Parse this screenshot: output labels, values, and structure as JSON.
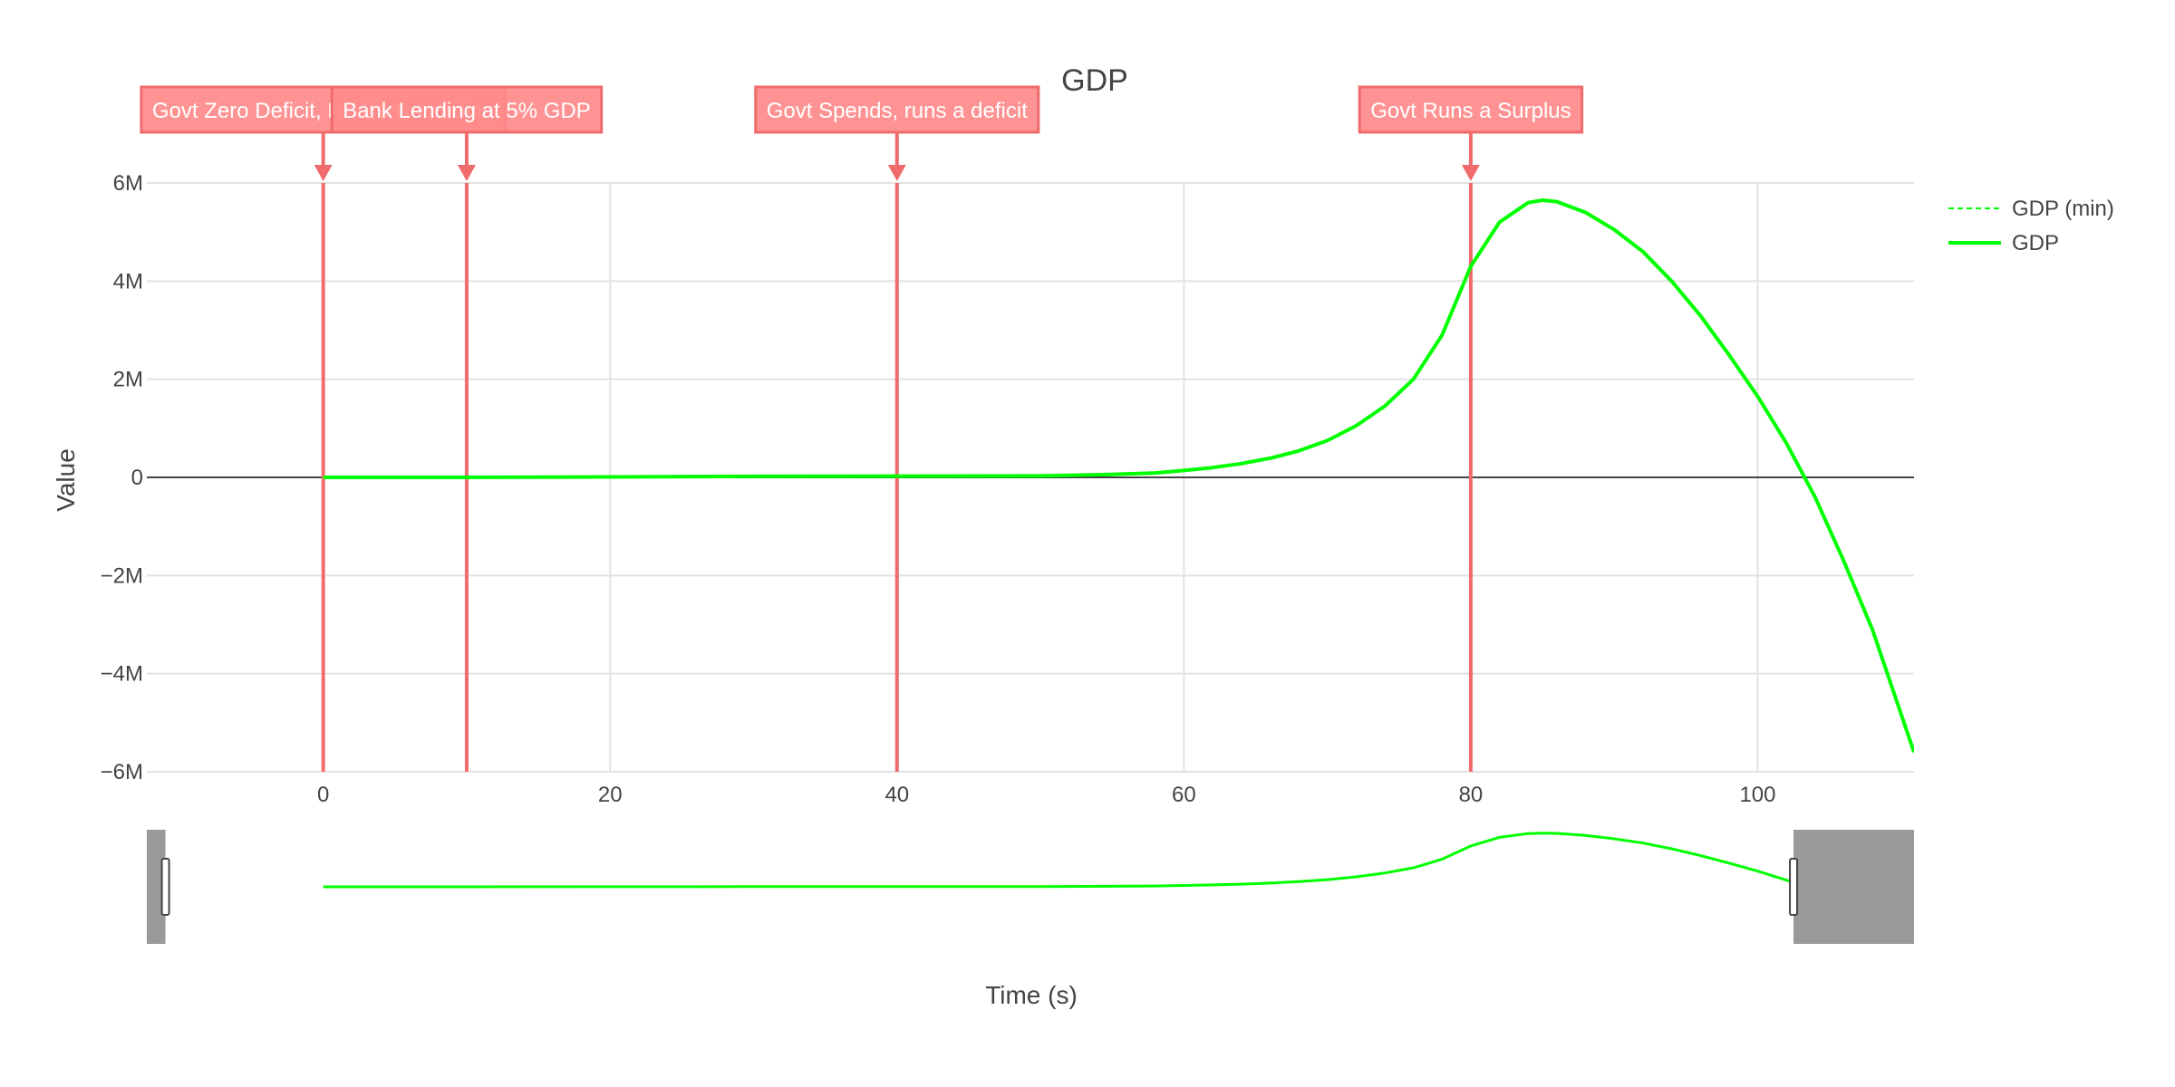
{
  "chart_data": {
    "type": "line",
    "title": "GDP",
    "xlabel": "Time (s)",
    "ylabel": "Value",
    "xlim": [
      -12.3,
      110.9
    ],
    "ylim": [
      -6000000,
      6000000
    ],
    "x_ticks": [
      0,
      20,
      40,
      60,
      80,
      100
    ],
    "x_tick_labels": [
      "0",
      "20",
      "40",
      "60",
      "80",
      "100"
    ],
    "y_ticks": [
      6000000,
      4000000,
      2000000,
      0,
      -2000000,
      -4000000,
      -6000000
    ],
    "y_tick_labels": [
      "6M",
      "4M",
      "2M",
      "0",
      "−2M",
      "−4M",
      "−6M"
    ],
    "grid": true,
    "legend_position": "right",
    "series": [
      {
        "name": "GDP (min)",
        "dash": "dash",
        "color": "#00ff00",
        "x": [],
        "y": []
      },
      {
        "name": "GDP",
        "dash": "solid",
        "color": "#00ff00",
        "x": [
          0,
          5,
          10,
          20,
          30,
          40,
          50,
          55,
          58,
          60,
          62,
          64,
          66,
          68,
          70,
          72,
          74,
          76,
          78,
          80,
          82,
          84,
          85,
          86,
          88,
          90,
          92,
          94,
          96,
          98,
          100,
          102,
          104,
          106,
          108,
          110.9
        ],
        "y": [
          0,
          0,
          0,
          10000,
          20000,
          25000,
          30000,
          60000,
          90000,
          140000,
          200000,
          280000,
          390000,
          540000,
          750000,
          1050000,
          1450000,
          2000000,
          2900000,
          4300000,
          5200000,
          5600000,
          5650000,
          5620000,
          5400000,
          5050000,
          4600000,
          4000000,
          3300000,
          2500000,
          1650000,
          700000,
          -400000,
          -1700000,
          -3100000,
          -5600000
        ]
      }
    ],
    "annotations": [
      {
        "x": 0,
        "text": "Govt Zero Deficit, No Bank Lending"
      },
      {
        "x": 10,
        "text": "Bank Lending at 5% GDP"
      },
      {
        "x": 40,
        "text": "Govt Spends, runs a deficit"
      },
      {
        "x": 80,
        "text": "Govt Runs a Surplus"
      }
    ],
    "rangeslider": {
      "visible": true,
      "range": [
        -11,
        102.5
      ]
    },
    "colors": {
      "annotation": "#f06b6b",
      "annotation_fill": "#ff8a8a",
      "line": "#00ff00",
      "grid": "#e2e2e2",
      "zero_line": "#444444",
      "slider_mask": "#9a9a9a"
    }
  }
}
